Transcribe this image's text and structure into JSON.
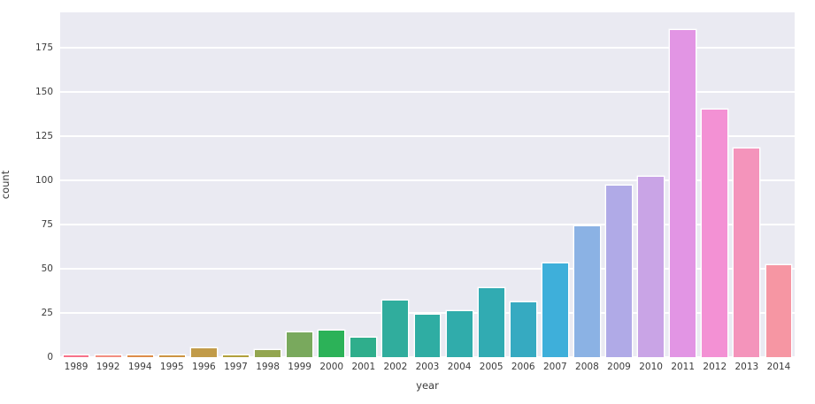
{
  "chart_data": {
    "type": "bar",
    "title": "",
    "xlabel": "year",
    "ylabel": "count",
    "categories": [
      "1989",
      "1992",
      "1994",
      "1995",
      "1996",
      "1997",
      "1998",
      "1999",
      "2000",
      "2001",
      "2002",
      "2003",
      "2004",
      "2005",
      "2006",
      "2007",
      "2008",
      "2009",
      "2010",
      "2011",
      "2012",
      "2013",
      "2014"
    ],
    "values": [
      1,
      1,
      1,
      1,
      5,
      1,
      4,
      14,
      15,
      11,
      32,
      24,
      26,
      39,
      31,
      53,
      74,
      97,
      102,
      185,
      140,
      118,
      52
    ],
    "bar_colors": [
      "#f77189",
      "#f28d80",
      "#dd8c4a",
      "#cc9442",
      "#c19b49",
      "#b1a03c",
      "#93a650",
      "#79a95d",
      "#2cb258",
      "#2fae8c",
      "#30ad9d",
      "#2fada3",
      "#30acab",
      "#31abb2",
      "#36aac1",
      "#3eafda",
      "#8bb2e4",
      "#b0aae7",
      "#c9a4e6",
      "#e295e4",
      "#f391d4",
      "#f494bb",
      "#f696a3"
    ],
    "ylim": [
      0,
      195
    ],
    "yticks": [
      0,
      25,
      50,
      75,
      100,
      125,
      150,
      175
    ],
    "grid": true,
    "legend": "none",
    "plot_bg": "#eaeaf2",
    "figure_bg": "#ffffff",
    "grid_color": "#ffffff",
    "bar_edge_color": "#ffffff",
    "tick_label_color": "#3b3b3b"
  }
}
